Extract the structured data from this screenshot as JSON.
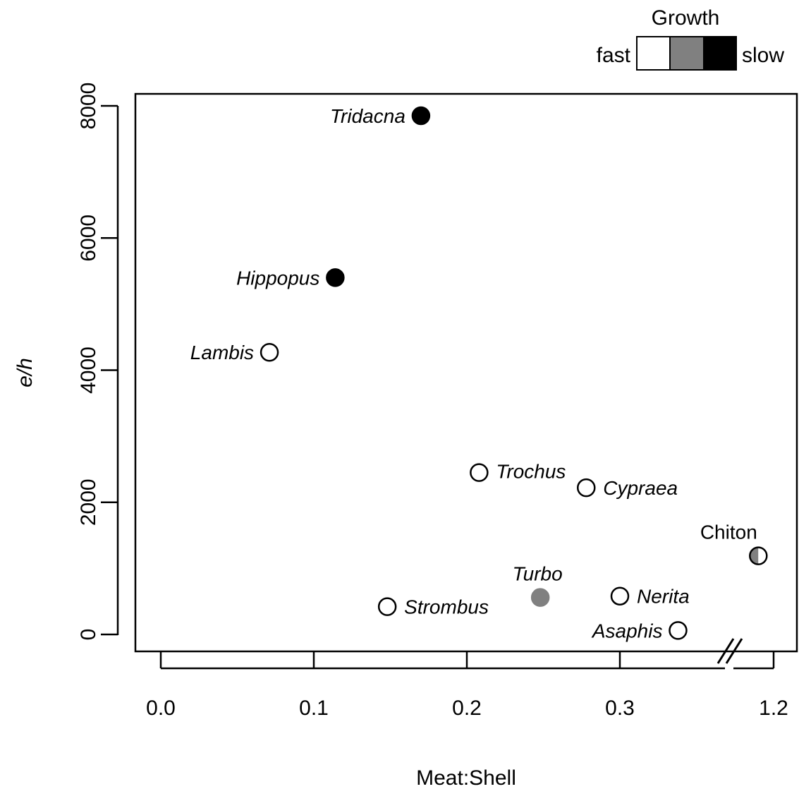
{
  "chart_data": {
    "type": "scatter",
    "xlabel": "Meat:Shell",
    "ylabel": "e/h",
    "x_ticks": [
      "0.0",
      "0.1",
      "0.2",
      "0.3",
      "1.2"
    ],
    "x_tick_values": [
      0.0,
      0.1,
      0.2,
      0.3,
      1.2
    ],
    "y_ticks": [
      "0",
      "2000",
      "4000",
      "6000",
      "8000"
    ],
    "y_tick_values": [
      0,
      2000,
      4000,
      6000,
      8000
    ],
    "xlim": [
      -0.017,
      1.22
    ],
    "ylim": [
      -250,
      8150
    ],
    "x_axis_break": "between 0.3 and 1.2",
    "legend": {
      "title": "Growth",
      "low_label": "fast",
      "high_label": "slow",
      "levels": [
        "fast",
        "intermediate",
        "slow"
      ],
      "colors": [
        "#ffffff",
        "#808080",
        "#000000"
      ]
    },
    "points": [
      {
        "name": "Tridacna",
        "x": 0.17,
        "y": 7850,
        "growth": "slow",
        "italic": true,
        "label_pos": "left"
      },
      {
        "name": "Hippopus",
        "x": 0.114,
        "y": 5400,
        "growth": "slow",
        "italic": true,
        "label_pos": "left"
      },
      {
        "name": "Lambis",
        "x": 0.071,
        "y": 4270,
        "growth": "fast",
        "italic": true,
        "label_pos": "left"
      },
      {
        "name": "Trochus",
        "x": 0.208,
        "y": 2450,
        "growth": "fast",
        "italic": true,
        "label_pos": "right"
      },
      {
        "name": "Cypraea",
        "x": 0.278,
        "y": 2220,
        "growth": "fast",
        "italic": true,
        "label_pos": "right"
      },
      {
        "name": "Chiton",
        "x": 1.19,
        "y": 1190,
        "growth": "fast/intermediate",
        "italic": false,
        "label_pos": "top"
      },
      {
        "name": "Turbo",
        "x": 0.248,
        "y": 560,
        "growth": "intermediate",
        "italic": true,
        "label_pos": "top"
      },
      {
        "name": "Nerita",
        "x": 0.3,
        "y": 580,
        "growth": "fast",
        "italic": true,
        "label_pos": "right"
      },
      {
        "name": "Strombus",
        "x": 0.148,
        "y": 420,
        "growth": "fast",
        "italic": true,
        "label_pos": "right"
      },
      {
        "name": "Asaphis",
        "x": 0.338,
        "y": 60,
        "growth": "fast",
        "italic": true,
        "label_pos": "left"
      }
    ]
  },
  "colors": {
    "fast": "#ffffff",
    "intermediate": "#808080",
    "slow": "#000000",
    "axis": "#000000"
  }
}
